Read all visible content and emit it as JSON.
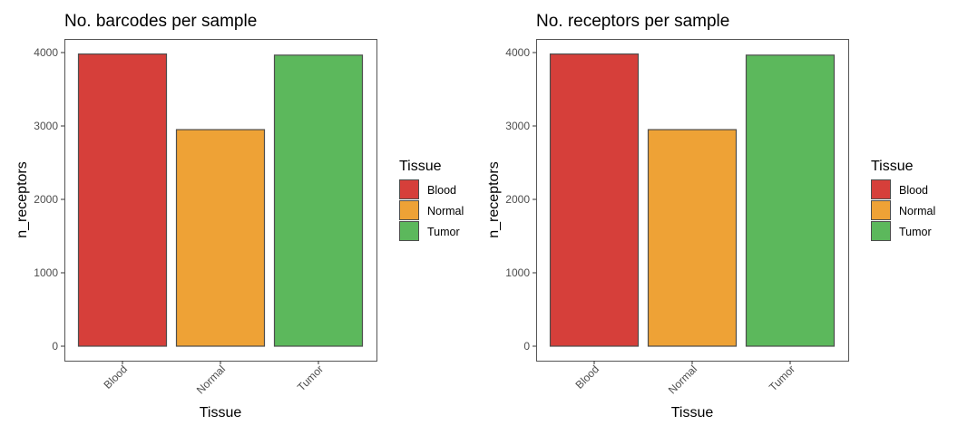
{
  "chart_data": [
    {
      "type": "bar",
      "title": "No. barcodes per sample",
      "xlabel": "Tissue",
      "ylabel": "n_receptors",
      "categories": [
        "Blood",
        "Normal",
        "Tumor"
      ],
      "values": [
        3980,
        2950,
        3965
      ],
      "ylim": [
        0,
        4000
      ],
      "yticks": [
        0,
        1000,
        2000,
        3000,
        4000
      ],
      "grid": false,
      "legend": {
        "title": "Tissue",
        "position": "right",
        "entries": [
          "Blood",
          "Normal",
          "Tumor"
        ]
      }
    },
    {
      "type": "bar",
      "title": "No. receptors per sample",
      "xlabel": "Tissue",
      "ylabel": "n_receptors",
      "categories": [
        "Blood",
        "Normal",
        "Tumor"
      ],
      "values": [
        3980,
        2950,
        3965
      ],
      "ylim": [
        0,
        4000
      ],
      "yticks": [
        0,
        1000,
        2000,
        3000,
        4000
      ],
      "grid": false,
      "legend": {
        "title": "Tissue",
        "position": "right",
        "entries": [
          "Blood",
          "Normal",
          "Tumor"
        ]
      }
    }
  ],
  "colors": {
    "Blood": "#d63f3a",
    "Normal": "#eea236",
    "Tumor": "#5cb85c",
    "bar_outline": "#4d4d4d",
    "panel_border": "#555555"
  }
}
